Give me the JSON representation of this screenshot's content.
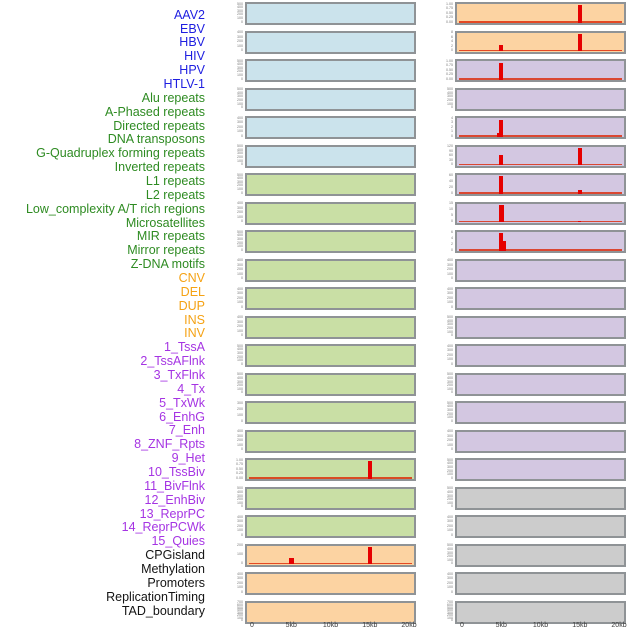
{
  "chart_data": {
    "type": "bar",
    "title": "",
    "description_layout": "44 genomic feature tracks drawn as two columns of 22 mini bar plots; rows 1-22 in left column, rows 23-44 in right column; x axis 0-20kb",
    "x_axis": {
      "labels": [
        "0",
        "5kb",
        "10kb",
        "15kb",
        "20kb"
      ],
      "ticks_kb": [
        0,
        5,
        10,
        15,
        20
      ],
      "xlim_kb": [
        0,
        20
      ]
    },
    "legend_position": "none",
    "grid": false,
    "colors": {
      "virus": {
        "label": "#1e1ee0",
        "bg": "#cbe3ec"
      },
      "repeat": {
        "label": "#2e8b22",
        "bg": "#c9dfa5"
      },
      "sv": {
        "label": "#f5a214",
        "bg": "#fcd3a2"
      },
      "chromatin": {
        "label": "#a534e3",
        "bg": "#d3c7e1"
      },
      "other": {
        "label": "#141414",
        "bg": "#cccccc"
      },
      "spike": "#e60000",
      "baseline": "#dd2200",
      "strip_border": "#8f9396"
    },
    "rows": [
      {
        "label": "AAV2",
        "category": "virus",
        "yticks": [
          "500",
          "400",
          "300",
          "200",
          "100",
          "0"
        ],
        "spikes": [],
        "baseline": false
      },
      {
        "label": "EBV",
        "category": "virus",
        "yticks": [
          "400",
          "300",
          "200",
          "100",
          "0"
        ],
        "spikes": [],
        "baseline": false
      },
      {
        "label": "HBV",
        "category": "virus",
        "yticks": [
          "500",
          "400",
          "300",
          "200",
          "100",
          "0"
        ],
        "spikes": [],
        "baseline": false
      },
      {
        "label": "HIV",
        "category": "virus",
        "yticks": [
          "500",
          "400",
          "300",
          "200",
          "100",
          "0"
        ],
        "spikes": [],
        "baseline": false
      },
      {
        "label": "HPV",
        "category": "virus",
        "yticks": [
          "400",
          "300",
          "200",
          "100",
          "0"
        ],
        "spikes": [],
        "baseline": false
      },
      {
        "label": "HTLV-1",
        "category": "virus",
        "yticks": [
          "500",
          "400",
          "300",
          "200",
          "100",
          "0"
        ],
        "spikes": [],
        "baseline": false
      },
      {
        "label": "Alu repeats",
        "category": "repeat",
        "yticks": [
          "500",
          "400",
          "300",
          "200",
          "100",
          "0"
        ],
        "spikes": [],
        "baseline": false
      },
      {
        "label": "A-Phased repeats",
        "category": "repeat",
        "yticks": [
          "400",
          "300",
          "200",
          "100",
          "0"
        ],
        "spikes": [],
        "baseline": false
      },
      {
        "label": "Directed repeats",
        "category": "repeat",
        "yticks": [
          "500",
          "400",
          "300",
          "200",
          "100",
          "0"
        ],
        "spikes": [],
        "baseline": false
      },
      {
        "label": "DNA transposons",
        "category": "repeat",
        "yticks": [
          "400",
          "300",
          "200",
          "100",
          "0"
        ],
        "spikes": [],
        "baseline": false
      },
      {
        "label": "G-Quadruplex forming repeats",
        "category": "repeat",
        "yticks": [
          "400",
          "300",
          "200",
          "100",
          "0"
        ],
        "spikes": [],
        "baseline": false
      },
      {
        "label": "Inverted repeats",
        "category": "repeat",
        "yticks": [
          "400",
          "300",
          "200",
          "100",
          "0"
        ],
        "spikes": [],
        "baseline": false
      },
      {
        "label": "L1 repeats",
        "category": "repeat",
        "yticks": [
          "500",
          "400",
          "300",
          "200",
          "100",
          "0"
        ],
        "spikes": [],
        "baseline": false
      },
      {
        "label": "L2 repeats",
        "category": "repeat",
        "yticks": [
          "500",
          "400",
          "300",
          "200",
          "100",
          "0"
        ],
        "spikes": [],
        "baseline": false
      },
      {
        "label": "Low_complexity A/T rich regions",
        "category": "repeat",
        "yticks": [
          "300",
          "200",
          "100",
          "0"
        ],
        "spikes": [],
        "baseline": false
      },
      {
        "label": "Microsatellites",
        "category": "repeat",
        "yticks": [
          "400",
          "300",
          "200",
          "100",
          "0"
        ],
        "spikes": [],
        "baseline": false
      },
      {
        "label": "MIR repeats",
        "category": "repeat",
        "yticks": [
          "1.00",
          "0.75",
          "0.50",
          "0.25",
          "0.00"
        ],
        "spikes": [
          {
            "x_kb": 15,
            "value": 1.0,
            "h": 1.0,
            "w": 4
          }
        ],
        "baseline": true
      },
      {
        "label": "Mirror repeats",
        "category": "repeat",
        "yticks": [
          "500",
          "400",
          "300",
          "200",
          "100",
          "0"
        ],
        "spikes": [],
        "baseline": false
      },
      {
        "label": "Z-DNA motifs",
        "category": "repeat",
        "yticks": [
          "400",
          "300",
          "200",
          "100",
          "0"
        ],
        "spikes": [],
        "baseline": false
      },
      {
        "label": "CNV",
        "category": "sv",
        "yticks": [
          "200",
          "100",
          "0"
        ],
        "spikes": [
          {
            "x_kb": 5,
            "value": 75,
            "h": 0.34,
            "w": 5
          },
          {
            "x_kb": 15,
            "value": 270,
            "h": 1.0,
            "w": 4
          }
        ],
        "baseline": true
      },
      {
        "label": "DEL",
        "category": "sv",
        "yticks": [
          "400",
          "300",
          "200",
          "100",
          "0"
        ],
        "spikes": [],
        "baseline": false
      },
      {
        "label": "DUP",
        "category": "sv",
        "yticks": [
          "700",
          "600",
          "500",
          "400",
          "300",
          "200",
          "100",
          "0"
        ],
        "spikes": [],
        "baseline": false
      },
      {
        "label": "INS",
        "category": "sv",
        "yticks": [
          "1.00",
          "0.75",
          "0.50",
          "0.25",
          "0.00"
        ],
        "spikes": [
          {
            "x_kb": 15,
            "value": 1.0,
            "h": 1.0,
            "w": 4
          }
        ],
        "baseline": true
      },
      {
        "label": "INV",
        "category": "sv",
        "yticks": [
          "8",
          "6",
          "4",
          "2",
          "0"
        ],
        "spikes": [
          {
            "x_kb": 5,
            "value": 3,
            "h": 0.35,
            "w": 4
          },
          {
            "x_kb": 15,
            "value": 8,
            "h": 1.0,
            "w": 4
          }
        ],
        "baseline": true
      },
      {
        "label": "1_TssA",
        "category": "chromatin",
        "yticks": [
          "1.00",
          "0.75",
          "0.50",
          "0.25",
          "0.00"
        ],
        "spikes": [
          {
            "x_kb": 5,
            "value": 1.0,
            "h": 0.97,
            "w": 4
          }
        ],
        "baseline": true
      },
      {
        "label": "2_TssAFlnk",
        "category": "chromatin",
        "yticks": [
          "500",
          "400",
          "300",
          "200",
          "100",
          "0"
        ],
        "spikes": [],
        "baseline": false
      },
      {
        "label": "3_TxFlnk",
        "category": "chromatin",
        "yticks": [
          "4",
          "3",
          "2",
          "1",
          "0"
        ],
        "spikes": [
          {
            "x_kb": 4.6,
            "value": 0.8,
            "h": 0.2,
            "w": 3
          },
          {
            "x_kb": 5,
            "value": 4,
            "h": 0.97,
            "w": 4
          }
        ],
        "baseline": true
      },
      {
        "label": "4_Tx",
        "category": "chromatin",
        "yticks": [
          "120",
          "90",
          "60",
          "30",
          "0"
        ],
        "spikes": [
          {
            "x_kb": 5,
            "value": 72,
            "h": 0.6,
            "w": 4
          },
          {
            "x_kb": 15,
            "value": 120,
            "h": 1.0,
            "w": 4
          }
        ],
        "baseline": true
      },
      {
        "label": "5_TxWk",
        "category": "chromatin",
        "yticks": [
          "60",
          "40",
          "20",
          "0"
        ],
        "spikes": [
          {
            "x_kb": 5,
            "value": 60,
            "h": 1.0,
            "w": 4
          },
          {
            "x_kb": 15,
            "value": 13,
            "h": 0.22,
            "w": 4
          }
        ],
        "baseline": true
      },
      {
        "label": "6_EnhG",
        "category": "chromatin",
        "yticks": [
          "15",
          "10",
          "5",
          "0"
        ],
        "spikes": [
          {
            "x_kb": 5,
            "value": 15,
            "h": 1.0,
            "w": 5
          },
          {
            "x_kb": 15,
            "value": 1.2,
            "h": 0.08,
            "w": 3
          }
        ],
        "baseline": true
      },
      {
        "label": "7_Enh",
        "category": "chromatin",
        "yticks": [
          "6",
          "4",
          "2",
          "0"
        ],
        "spikes": [
          {
            "x_kb": 4.9,
            "value": 6,
            "h": 1.0,
            "w": 4
          },
          {
            "x_kb": 5.4,
            "value": 3.3,
            "h": 0.55,
            "w": 3
          }
        ],
        "baseline": true
      },
      {
        "label": "8_ZNF_Rpts",
        "category": "chromatin",
        "yticks": [
          "400",
          "300",
          "200",
          "100",
          "0"
        ],
        "spikes": [],
        "baseline": false
      },
      {
        "label": "9_Het",
        "category": "chromatin",
        "yticks": [
          "400",
          "300",
          "200",
          "100",
          "0"
        ],
        "spikes": [],
        "baseline": false
      },
      {
        "label": "10_TssBiv",
        "category": "chromatin",
        "yticks": [
          "500",
          "400",
          "300",
          "200",
          "100",
          "0"
        ],
        "spikes": [],
        "baseline": false
      },
      {
        "label": "11_BivFlnk",
        "category": "chromatin",
        "yticks": [
          "400",
          "300",
          "200",
          "100",
          "0"
        ],
        "spikes": [],
        "baseline": false
      },
      {
        "label": "12_EnhBiv",
        "category": "chromatin",
        "yticks": [
          "500",
          "400",
          "300",
          "200",
          "100",
          "0"
        ],
        "spikes": [],
        "baseline": false
      },
      {
        "label": "13_ReprPC",
        "category": "chromatin",
        "yticks": [
          "500",
          "400",
          "300",
          "200",
          "100",
          "0"
        ],
        "spikes": [],
        "baseline": false
      },
      {
        "label": "14_ReprPCWk",
        "category": "chromatin",
        "yticks": [
          "400",
          "300",
          "200",
          "100",
          "0"
        ],
        "spikes": [],
        "baseline": false
      },
      {
        "label": "15_Quies",
        "category": "chromatin",
        "yticks": [
          "500",
          "400",
          "300",
          "200",
          "100",
          "0"
        ],
        "spikes": [],
        "baseline": false
      },
      {
        "label": "CPGisland",
        "category": "other",
        "yticks": [
          "500",
          "400",
          "300",
          "200",
          "100",
          "0"
        ],
        "spikes": [],
        "baseline": false
      },
      {
        "label": "Methylation",
        "category": "other",
        "yticks": [
          "400",
          "300",
          "200",
          "100",
          "0"
        ],
        "spikes": [],
        "baseline": false
      },
      {
        "label": "Promoters",
        "category": "other",
        "yticks": [
          "500",
          "400",
          "300",
          "200",
          "100",
          "0"
        ],
        "spikes": [],
        "baseline": false
      },
      {
        "label": "ReplicationTiming",
        "category": "other",
        "yticks": [
          "400",
          "300",
          "200",
          "100",
          "0"
        ],
        "spikes": [],
        "baseline": false
      },
      {
        "label": "TAD_boundary",
        "category": "other",
        "yticks": [
          "700",
          "600",
          "500",
          "400",
          "300",
          "200",
          "100",
          "0"
        ],
        "spikes": [],
        "baseline": false
      }
    ]
  }
}
